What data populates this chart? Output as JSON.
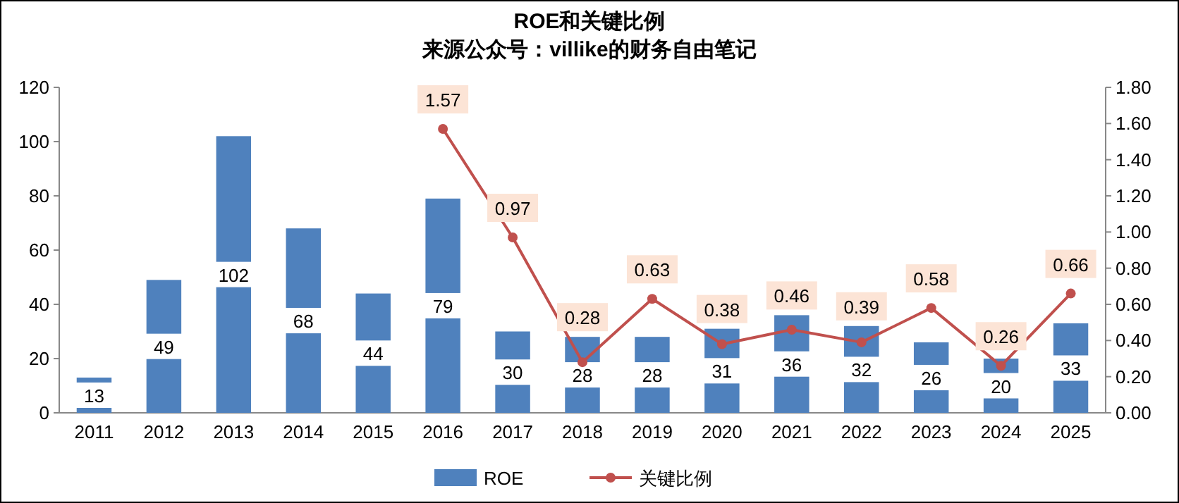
{
  "chart_data": {
    "type": "bar",
    "title": "ROE和关键比例",
    "subtitle": "来源公众号：villike的财务自由笔记",
    "categories": [
      "2011",
      "2012",
      "2013",
      "2014",
      "2015",
      "2016",
      "2017",
      "2018",
      "2019",
      "2020",
      "2021",
      "2022",
      "2023",
      "2024",
      "2025"
    ],
    "series": [
      {
        "name": "ROE",
        "color": "#4f81bd",
        "values": [
          13,
          49,
          102,
          68,
          44,
          79,
          30,
          28,
          28,
          31,
          36,
          32,
          26,
          20,
          33
        ]
      },
      {
        "name": "关键比例",
        "type": "line",
        "axis": "y2",
        "color": "#c0504d",
        "marker": "circle",
        "values": [
          null,
          null,
          null,
          null,
          null,
          1.57,
          0.97,
          0.28,
          0.63,
          0.38,
          0.46,
          0.39,
          0.58,
          0.26,
          0.66
        ]
      }
    ],
    "ylim": [
      0,
      120
    ],
    "yticks": [
      0,
      20,
      40,
      60,
      80,
      100,
      120
    ],
    "y2lim": [
      0,
      1.8
    ],
    "y2ticks": [
      {
        "value": 0,
        "label": "0.00"
      },
      {
        "value": 0.2,
        "label": "0.20"
      },
      {
        "value": 0.4,
        "label": "0.40"
      },
      {
        "value": 0.6,
        "label": "0.60"
      },
      {
        "value": 0.8,
        "label": "0.80"
      },
      {
        "value": 1,
        "label": "1.00"
      },
      {
        "value": 1.2,
        "label": "1.20"
      },
      {
        "value": 1.4,
        "label": "1.40"
      },
      {
        "value": 1.6,
        "label": "1.60"
      },
      {
        "value": 1.8,
        "label": "1.80"
      }
    ],
    "data_labels": true,
    "legend": "bottom",
    "grid": false
  }
}
